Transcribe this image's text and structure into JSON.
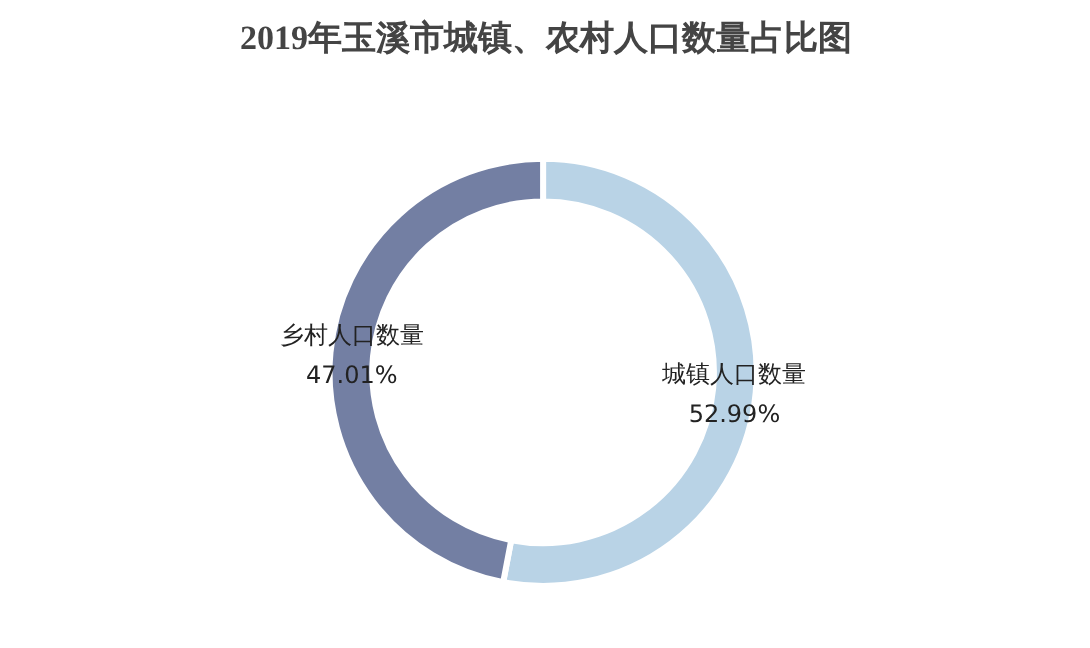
{
  "chart_data": {
    "type": "donut",
    "title": "2019年玉溪市城镇、农村人口数量占比图",
    "categories": [
      "城镇人口数量",
      "乡村人口数量"
    ],
    "values": [
      52.99,
      47.01
    ],
    "colors": [
      "#b9d3e6",
      "#737fa3"
    ],
    "value_labels": [
      "52.99%",
      "47.01%"
    ]
  }
}
